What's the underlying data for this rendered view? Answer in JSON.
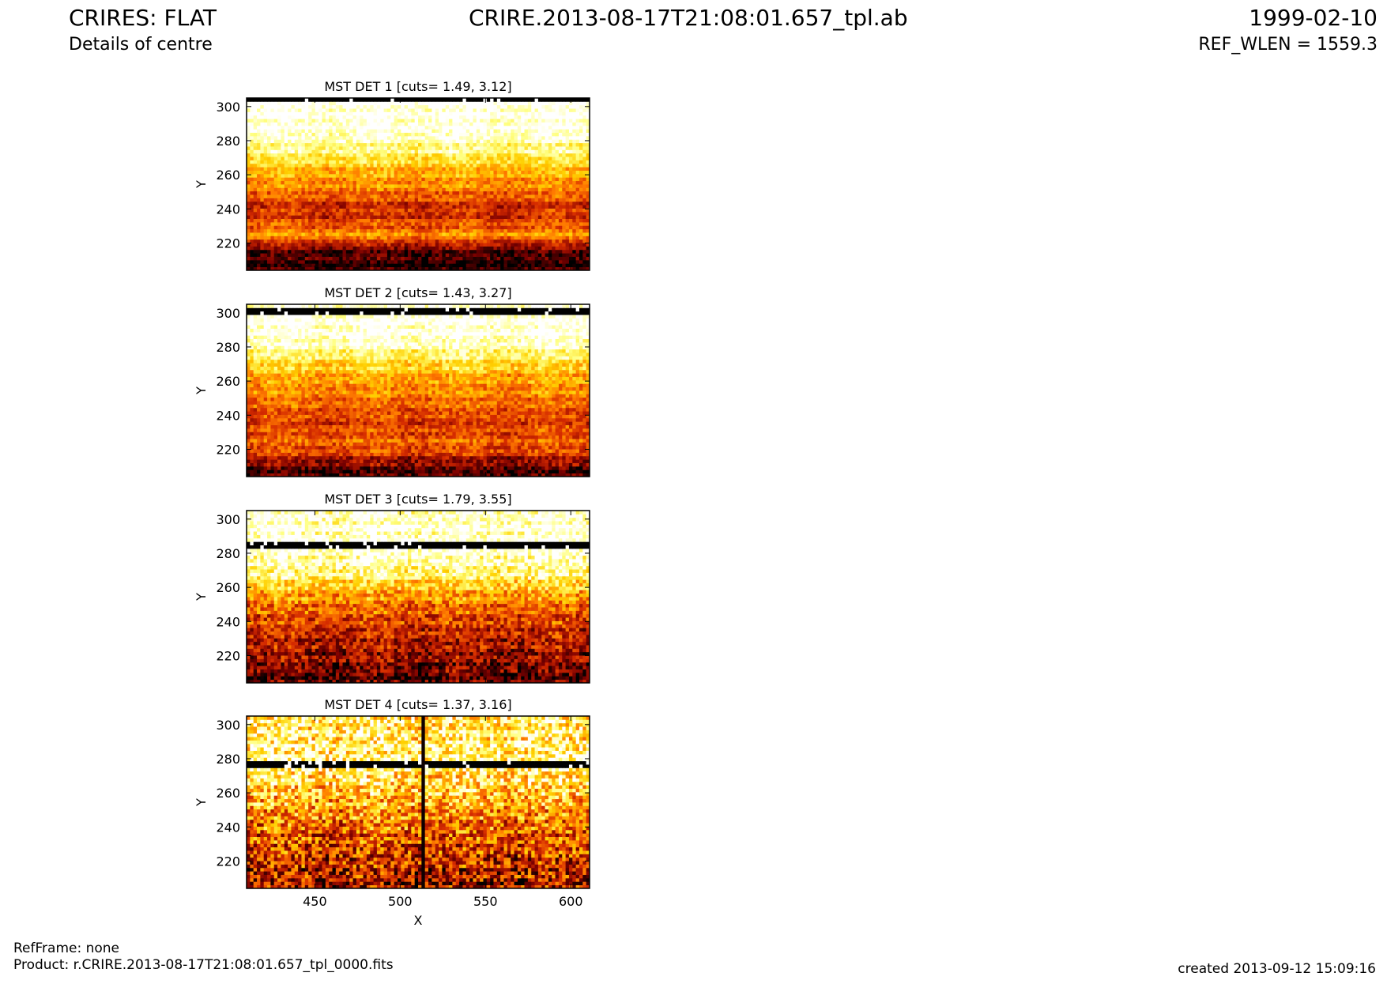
{
  "header": {
    "title": "CRIRES: FLAT",
    "subtitle": "Details of centre",
    "filename": "CRIRE.2013-08-17T21:08:01.657_tpl.ab",
    "date": "1999-02-10",
    "ref_wlen": "REF_WLEN = 1559.3"
  },
  "footer": {
    "ref_frame": "RefFrame: none",
    "product": "Product: r.CRIRE.2013-08-17T21:08:01.657_tpl_0000.fits",
    "created": "created 2013-09-12 15:09:16"
  },
  "colors": {
    "colormap": [
      "#000000",
      "#7a0000",
      "#d42a00",
      "#ff7a00",
      "#ffd000",
      "#ffff80",
      "#ffffff"
    ]
  },
  "chart_data": [
    {
      "type": "heatmap",
      "title": "MST DET 1 [cuts= 1.49, 3.12]",
      "xlim": [
        410,
        611
      ],
      "ylim": [
        204,
        305
      ],
      "yticks": [
        220,
        240,
        260,
        280,
        300
      ],
      "ylabel": "Y",
      "xlabel": "",
      "cuts": [
        1.49,
        3.12
      ],
      "dark_band_y": [
        302,
        305
      ],
      "noise": 0.12,
      "row_profile": [
        [
          204,
          0.05
        ],
        [
          212,
          0.08
        ],
        [
          218,
          0.18
        ],
        [
          222,
          0.45
        ],
        [
          226,
          0.55
        ],
        [
          230,
          0.42
        ],
        [
          236,
          0.35
        ],
        [
          242,
          0.32
        ],
        [
          248,
          0.45
        ],
        [
          254,
          0.52
        ],
        [
          260,
          0.58
        ],
        [
          266,
          0.68
        ],
        [
          272,
          0.8
        ],
        [
          278,
          0.86
        ],
        [
          284,
          0.97
        ],
        [
          300,
          1.0
        ]
      ]
    },
    {
      "type": "heatmap",
      "title": "MST DET 2 [cuts= 1.43, 3.27]",
      "xlim": [
        410,
        611
      ],
      "ylim": [
        204,
        305
      ],
      "yticks": [
        220,
        240,
        260,
        280,
        300
      ],
      "ylabel": "Y",
      "xlabel": "",
      "cuts": [
        1.43,
        3.27
      ],
      "dark_band_y": [
        298,
        302
      ],
      "noise": 0.13,
      "row_profile": [
        [
          204,
          0.08
        ],
        [
          210,
          0.15
        ],
        [
          216,
          0.3
        ],
        [
          222,
          0.45
        ],
        [
          230,
          0.4
        ],
        [
          238,
          0.38
        ],
        [
          246,
          0.45
        ],
        [
          254,
          0.52
        ],
        [
          262,
          0.58
        ],
        [
          268,
          0.68
        ],
        [
          274,
          0.78
        ],
        [
          280,
          0.9
        ],
        [
          286,
          0.97
        ],
        [
          297,
          1.0
        ],
        [
          305,
          0.95
        ]
      ]
    },
    {
      "type": "heatmap",
      "title": "MST DET 3 [cuts= 1.79, 3.55]",
      "xlim": [
        410,
        611
      ],
      "ylim": [
        204,
        305
      ],
      "yticks": [
        220,
        240,
        260,
        280,
        300
      ],
      "ylabel": "Y",
      "xlabel": "",
      "cuts": [
        1.79,
        3.55
      ],
      "dark_band_y": [
        283,
        287
      ],
      "noise": 0.18,
      "row_profile": [
        [
          204,
          0.1
        ],
        [
          214,
          0.18
        ],
        [
          222,
          0.25
        ],
        [
          232,
          0.3
        ],
        [
          240,
          0.38
        ],
        [
          248,
          0.45
        ],
        [
          254,
          0.55
        ],
        [
          260,
          0.65
        ],
        [
          266,
          0.8
        ],
        [
          272,
          0.88
        ],
        [
          280,
          0.95
        ],
        [
          288,
          0.96
        ],
        [
          296,
          0.98
        ],
        [
          305,
          0.92
        ]
      ]
    },
    {
      "type": "heatmap",
      "title": "MST DET 4 [cuts= 1.37, 3.16]",
      "xlim": [
        410,
        611
      ],
      "ylim": [
        204,
        305
      ],
      "yticks": [
        220,
        240,
        260,
        280,
        300
      ],
      "xticks": [
        450,
        500,
        550,
        600
      ],
      "ylabel": "Y",
      "xlabel": "X",
      "cuts": [
        1.37,
        3.16
      ],
      "dark_band_y": [
        275,
        278
      ],
      "dark_column_x": 513,
      "noise": 0.28,
      "row_profile": [
        [
          204,
          0.25
        ],
        [
          216,
          0.32
        ],
        [
          226,
          0.38
        ],
        [
          236,
          0.45
        ],
        [
          246,
          0.52
        ],
        [
          256,
          0.62
        ],
        [
          266,
          0.72
        ],
        [
          274,
          0.8
        ],
        [
          282,
          0.85
        ],
        [
          292,
          0.8
        ],
        [
          305,
          0.78
        ]
      ]
    }
  ]
}
